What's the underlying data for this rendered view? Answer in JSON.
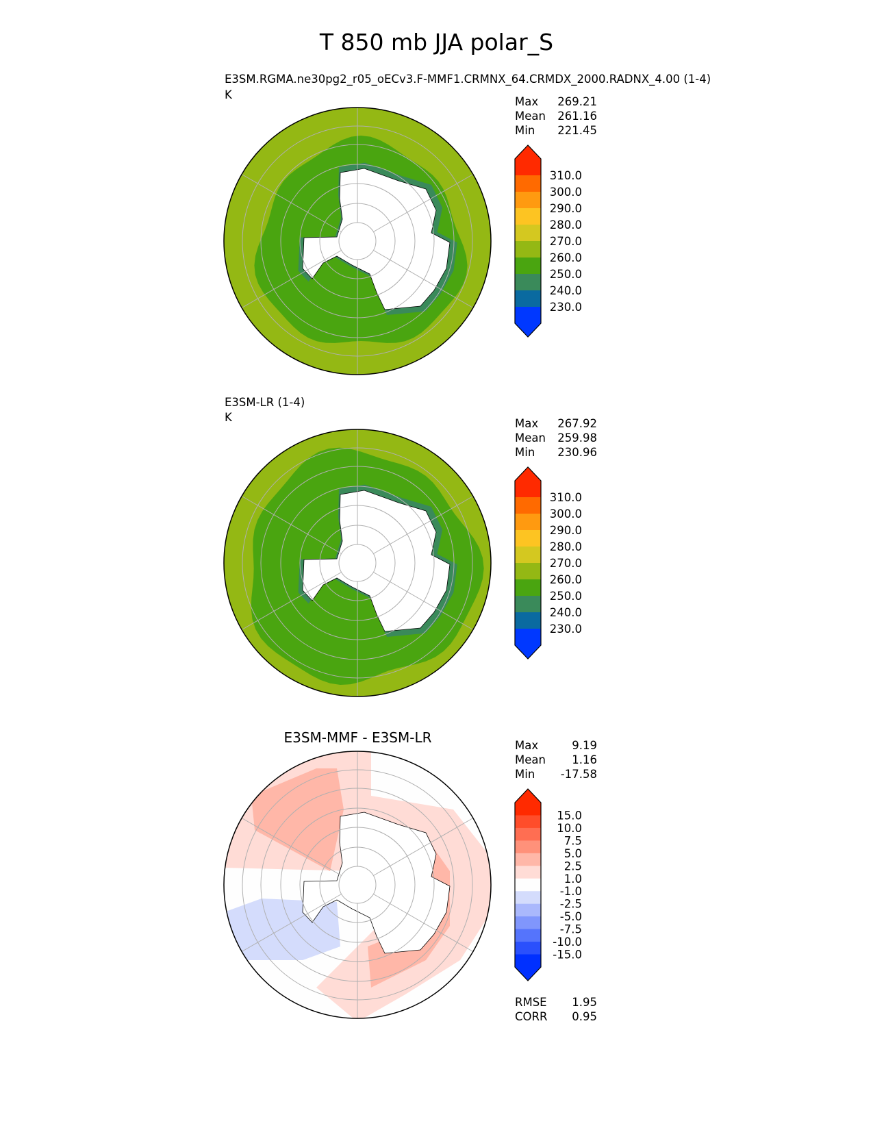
{
  "title": "T 850 mb JJA polar_S",
  "panels": [
    {
      "name": "test",
      "title": "E3SM.RGMA.ne30pg2_r05_oECv3.F-MMF1.CRMNX_64.CRMDX_2000.RADNX_4.00 (1-4)",
      "units": "K",
      "stats": {
        "max_label": "Max",
        "max": "269.21",
        "mean_label": "Mean",
        "mean": "261.16",
        "min_label": "Min",
        "min": "221.45"
      },
      "colorbar": {
        "labels": [
          "310.0",
          "300.0",
          "290.0",
          "280.0",
          "270.0",
          "260.0",
          "250.0",
          "240.0",
          "230.0"
        ],
        "colors": [
          "#ff2a00",
          "#ff6a00",
          "#ff9a10",
          "#fdc422",
          "#d4c820",
          "#94b814",
          "#4aa510",
          "#3a8a5a",
          "#0a6aa0",
          "#0038ff"
        ]
      },
      "colors": {
        "outer": "#94b814",
        "inner": "#4aa510",
        "coast": "#3a8a5a"
      }
    },
    {
      "name": "reference",
      "title": "E3SM-LR (1-4)",
      "units": "K",
      "stats": {
        "max_label": "Max",
        "max": "267.92",
        "mean_label": "Mean",
        "mean": "259.98",
        "min_label": "Min",
        "min": "230.96"
      },
      "colorbar": {
        "labels": [
          "310.0",
          "300.0",
          "290.0",
          "280.0",
          "270.0",
          "260.0",
          "250.0",
          "240.0",
          "230.0"
        ],
        "colors": [
          "#ff2a00",
          "#ff6a00",
          "#ff9a10",
          "#fdc422",
          "#d4c820",
          "#94b814",
          "#4aa510",
          "#3a8a5a",
          "#0a6aa0",
          "#0038ff"
        ]
      },
      "colors": {
        "outer": "#94b814",
        "inner": "#4aa510",
        "coast": "#3a8a5a"
      }
    },
    {
      "name": "difference",
      "title": "E3SM-MMF - E3SM-LR",
      "units": "",
      "stats": {
        "max_label": "Max",
        "max": "9.19",
        "mean_label": "Mean",
        "mean": "1.16",
        "min_label": "Min",
        "min": "-17.58"
      },
      "colorbar": {
        "labels": [
          "15.0",
          "10.0",
          "7.5",
          "5.0",
          "2.5",
          "1.0",
          "-1.0",
          "-2.5",
          "-5.0",
          "-7.5",
          "-10.0",
          "-15.0"
        ],
        "colors": [
          "#ff2a00",
          "#ff4d2a",
          "#ff6e52",
          "#ff917a",
          "#ffb7a8",
          "#ffdcd6",
          "#fefefe",
          "#d4dcfc",
          "#aab8fc",
          "#8096fc",
          "#5574fc",
          "#2a50fc",
          "#0030ff"
        ]
      },
      "metrics": {
        "rmse_label": "RMSE",
        "rmse": "1.95",
        "corr_label": "CORR",
        "corr": "0.95"
      }
    }
  ]
}
